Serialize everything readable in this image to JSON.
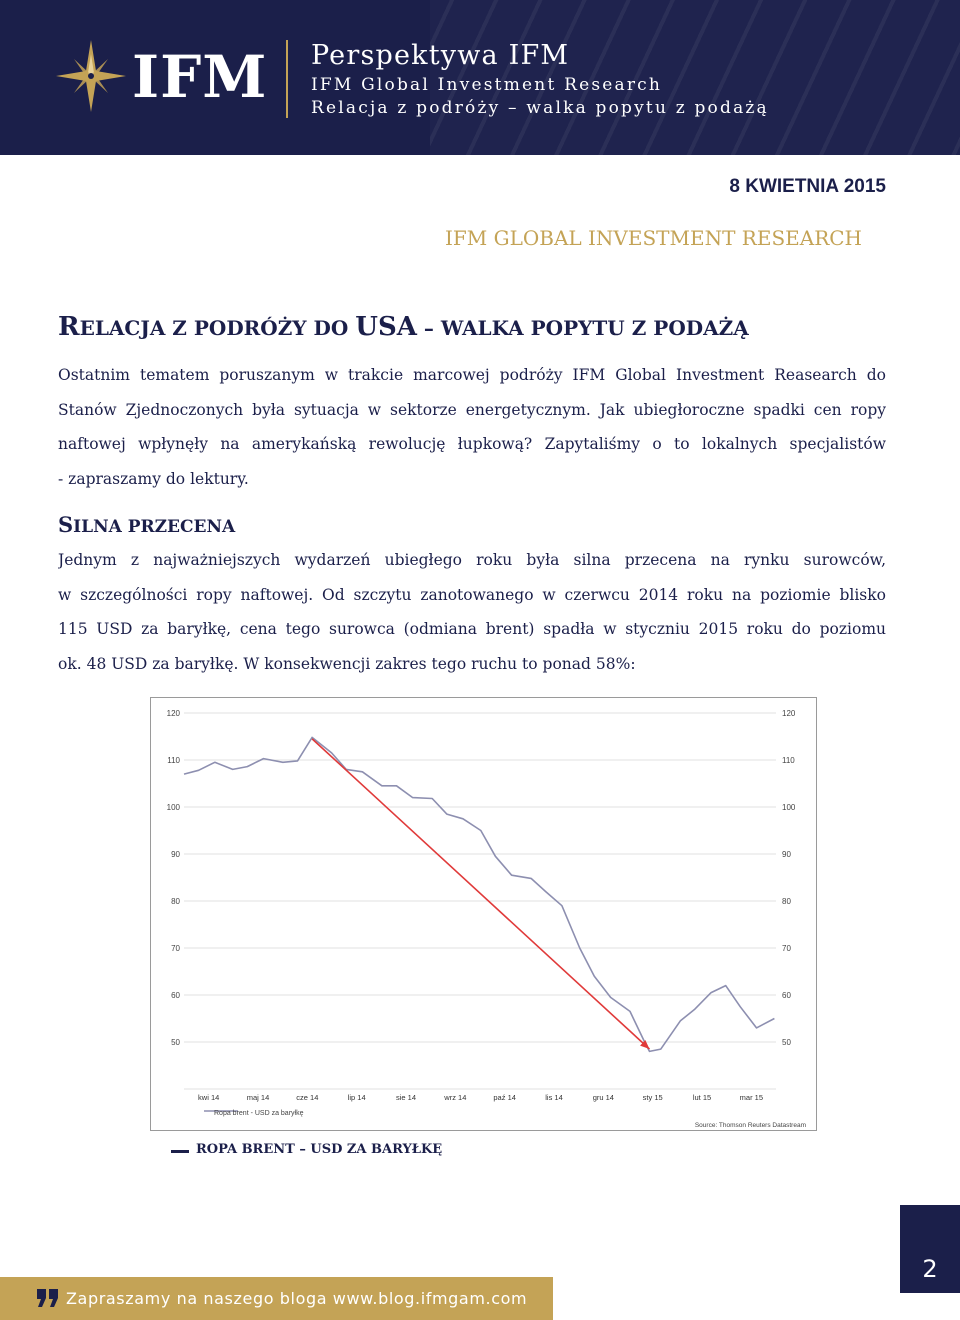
{
  "header": {
    "logo_text": "IFM",
    "title": "Perspektywa IFM",
    "subtitle": "IFM Global Investment Research",
    "subtitle2": "Relacja z podróży – walka popytu z podażą"
  },
  "date": "8 KWIETNIA 2015",
  "research_label": "IFM GLOBAL INVESTMENT RESEARCH",
  "main_heading": {
    "first": "R",
    "rest": "ELACJA Z PODRÓŻY DO ",
    "usa": "USA",
    "tail": " – WALKA POPYTU Z PODAŻĄ"
  },
  "intro_lines": [
    "Ostatnim tematem poruszanym w trakcie marcowej podróży IFM Global Investment Reasearch do",
    "Stanów Zjednoczonych była sytuacja w sektorze energetycznym. Jak ubiegłoroczne spadki cen ropy",
    "naftowej wpłynęły na amerykańską rewolucję łupkową? Zapytaliśmy o to lokalnych specjalistów",
    "- zapraszamy do lektury."
  ],
  "section_heading": {
    "first": "S",
    "rest": "ILNA PRZECENA"
  },
  "body_lines": [
    "Jednym z najważniejszych wydarzeń ubiegłego roku była silna przecena na rynku surowców,",
    "w szczególności ropy naftowej. Od szczytu zanotowanego w czerwcu 2014 roku na poziomie blisko",
    "115 USD za baryłkę, cena tego surowca (odmiana brent) spadła w styczniu 2015 roku do poziomu",
    "ok. 48 USD za baryłkę. W konsekwencji zakres tego ruchu to ponad 58%:"
  ],
  "chart_data": {
    "type": "line",
    "ylim": [
      40,
      120
    ],
    "yticks": [
      40,
      50,
      60,
      70,
      80,
      90,
      100,
      110,
      120
    ],
    "yticks_labeled": [
      50,
      60,
      70,
      80,
      90,
      100,
      110,
      120
    ],
    "xticks": [
      "kwi 14",
      "maj 14",
      "cze 14",
      "lip 14",
      "sie 14",
      "wrz 14",
      "paź 14",
      "lis 14",
      "gru 14",
      "sty 15",
      "lut 15",
      "mar 15"
    ],
    "legend": "Ropa brent - USD za baryłkę",
    "legend_position": "bottom-left",
    "source": "Source: Thomson Reuters Datastream",
    "series": [
      {
        "name": "Ropa brent - USD za baryłkę",
        "color": "#8d8fb0",
        "x": [
          "2014-04-01",
          "2014-04-10",
          "2014-04-20",
          "2014-05-01",
          "2014-05-10",
          "2014-05-20",
          "2014-06-01",
          "2014-06-10",
          "2014-06-19",
          "2014-07-01",
          "2014-07-10",
          "2014-07-20",
          "2014-08-01",
          "2014-08-10",
          "2014-08-20",
          "2014-09-01",
          "2014-09-10",
          "2014-09-20",
          "2014-10-01",
          "2014-10-10",
          "2014-10-20",
          "2014-11-01",
          "2014-11-10",
          "2014-11-20",
          "2014-12-01",
          "2014-12-10",
          "2014-12-20",
          "2015-01-01",
          "2015-01-10",
          "2015-01-13",
          "2015-01-20",
          "2015-02-01",
          "2015-02-10",
          "2015-02-20",
          "2015-03-01",
          "2015-03-10",
          "2015-03-20",
          "2015-03-31"
        ],
        "y": [
          107.0,
          107.8,
          109.5,
          108.0,
          108.6,
          110.3,
          109.5,
          109.8,
          114.8,
          111.5,
          108.0,
          107.5,
          104.5,
          104.5,
          102.0,
          101.8,
          98.5,
          97.5,
          95.0,
          89.5,
          85.5,
          84.8,
          82.0,
          79.0,
          70.0,
          64.0,
          59.5,
          56.5,
          50.0,
          48.0,
          48.5,
          54.5,
          57.0,
          60.5,
          62.0,
          57.5,
          53.0,
          55.0
        ]
      }
    ],
    "trend_line": {
      "color": "#e03a3a",
      "x": [
        "2014-06-19",
        "2015-01-13"
      ],
      "y": [
        114.5,
        48.5
      ]
    }
  },
  "caption": "ROPA BRENT – USD ZA BARYŁKĘ",
  "footer": {
    "text": "Zapraszamy na naszego bloga www.blog.ifmgam.com",
    "page": "2"
  },
  "colors": {
    "navy": "#1b1f4a",
    "gold": "#c4a356",
    "series": "#8d8fb0",
    "trend": "#e03a3a"
  },
  "icons": {
    "logo": "compass-star-icon",
    "footer": "quote-icon"
  }
}
